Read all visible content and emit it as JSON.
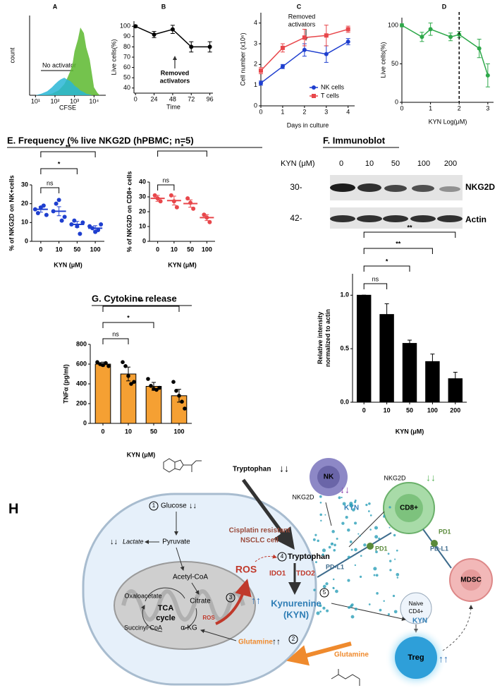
{
  "headings": {
    "E": "E. Frequency (% live NKG2D (hPBMC; n=5)",
    "G": "G. Cytokine release"
  },
  "immunoblot": {
    "title": "F. Immunoblot",
    "axis_label": "KYN (μM)",
    "lanes": [
      "0",
      "10",
      "50",
      "100",
      "200"
    ],
    "rows": [
      {
        "size": "30-",
        "name": "NKG2D"
      },
      {
        "size": "42-",
        "name": "Actin"
      }
    ]
  },
  "chart_data": [
    {
      "label": "A",
      "type": "area",
      "xscale": "log",
      "x": [
        10,
        20,
        40,
        70,
        100,
        150,
        200,
        300,
        400,
        600,
        800,
        1000,
        1500,
        2000,
        3000,
        4000,
        6000,
        8000,
        10000,
        15000,
        20000
      ],
      "series": [
        {
          "color": "#5cb82e",
          "values": [
            0,
            0,
            1,
            2,
            4,
            6,
            9,
            14,
            20,
            30,
            40,
            55,
            70,
            85,
            78,
            60,
            45,
            25,
            10,
            3,
            0
          ]
        },
        {
          "color": "#29b6d6",
          "values": [
            0,
            2,
            5,
            10,
            14,
            18,
            20,
            22,
            20,
            18,
            15,
            12,
            9,
            6,
            4,
            2,
            1,
            0,
            0,
            0,
            0
          ]
        }
      ],
      "xlim": [
        5,
        40000
      ],
      "xticks": [
        {
          "value": 10,
          "label": "10¹"
        },
        {
          "value": 100,
          "label": "10²"
        },
        {
          "value": 1000,
          "label": "10³"
        },
        {
          "value": 10000,
          "label": "10⁴"
        }
      ],
      "ylim": [
        0,
        100
      ],
      "ylabel": "count",
      "xlabel": "CFSE",
      "annotation": "No activator"
    },
    {
      "label": "B",
      "type": "line",
      "x": [
        0,
        24,
        48,
        72,
        96
      ],
      "series": [
        {
          "color": "#000000",
          "marker": "circle",
          "values": [
            100,
            92,
            97,
            80,
            80
          ],
          "errors": [
            1,
            3,
            4,
            5,
            5
          ]
        }
      ],
      "xlim": [
        -2,
        100
      ],
      "xticks": [
        0,
        24,
        48,
        72,
        96
      ],
      "ylim": [
        35,
        105
      ],
      "yticks": [
        40,
        50,
        60,
        70,
        80,
        90,
        100
      ],
      "ylabel": "Live cells(%)",
      "xlabel": "Time",
      "annotation": [
        "Removed",
        "activators"
      ]
    },
    {
      "label": "C",
      "type": "line",
      "x": [
        0,
        1,
        2,
        3,
        4
      ],
      "series": [
        {
          "name": "NK cells",
          "color": "#1f3fcf",
          "marker": "circle",
          "values": [
            1.1,
            1.9,
            2.7,
            2.5,
            3.1
          ],
          "errors": [
            0.1,
            0.1,
            0.3,
            0.4,
            0.15
          ]
        },
        {
          "name": "T cells",
          "color": "#e8474b",
          "marker": "square",
          "values": [
            1.7,
            2.8,
            3.3,
            3.4,
            3.7
          ],
          "errors": [
            0.15,
            0.2,
            0.4,
            0.5,
            0.15
          ]
        }
      ],
      "xlim": [
        0,
        4.3
      ],
      "xticks": [
        0,
        1,
        2,
        3,
        4
      ],
      "ylim": [
        0,
        4.5
      ],
      "yticks": [
        0,
        1,
        2,
        3,
        4
      ],
      "legend": "lower right",
      "ylabel": "Cell number (x10⁶)",
      "xlabel": "Days in culture",
      "annotation": [
        "Removed",
        "activators"
      ]
    },
    {
      "label": "D",
      "type": "line",
      "x": [
        0,
        0.7,
        1,
        1.7,
        2,
        2.7,
        3
      ],
      "series": [
        {
          "color": "#2ea84a",
          "marker": "circle",
          "values": [
            100,
            85,
            95,
            85,
            88,
            70,
            35
          ],
          "errors": [
            2,
            6,
            8,
            5,
            4,
            12,
            15
          ]
        }
      ],
      "xlim": [
        0,
        3.2
      ],
      "xticks": [
        0,
        1,
        2,
        3
      ],
      "ylim": [
        0,
        110
      ],
      "yticks": [
        0,
        50,
        100
      ],
      "vline": 2,
      "ylabel": "Live cells(%)",
      "xlabel": "KYN Log(μM)"
    },
    {
      "type": "dot",
      "categories": [
        "0",
        "10",
        "50",
        "100"
      ],
      "color": "#1f3fcf",
      "points": [
        [
          17,
          15,
          18,
          19,
          14
        ],
        [
          16,
          20,
          22,
          11,
          13
        ],
        [
          9,
          11,
          8,
          4,
          10
        ],
        [
          8,
          7,
          5,
          6,
          9
        ]
      ],
      "means": [
        17,
        16,
        9,
        7
      ],
      "errors": [
        1.5,
        2.4,
        1.6,
        1.3
      ],
      "ylim": [
        0,
        30
      ],
      "yticks": [
        0,
        10,
        20,
        30
      ],
      "ylabel": "% of NKG2D on NK+cells",
      "xlabel": "KYN (μM)",
      "comparisons": [
        {
          "from": "0",
          "to": "10",
          "label": "ns"
        },
        {
          "from": "0",
          "to": "50",
          "label": "*"
        },
        {
          "from": "0",
          "to": "100",
          "label": "**"
        }
      ]
    },
    {
      "type": "dot",
      "categories": [
        "0",
        "10",
        "50",
        "100"
      ],
      "color": "#e8474b",
      "points": [
        [
          31,
          29,
          27
        ],
        [
          31,
          27,
          23
        ],
        [
          29,
          26,
          22
        ],
        [
          18,
          16,
          13
        ]
      ],
      "means": [
        29,
        27.5,
        25.5,
        16
      ],
      "errors": [
        2,
        3,
        2.5,
        2
      ],
      "ylim": [
        0,
        40
      ],
      "yticks": [
        0,
        10,
        20,
        30,
        40
      ],
      "ylabel": "% of NKG2D on CD8+ cells",
      "xlabel": "KYN (μM)",
      "comparisons": [
        {
          "from": "0",
          "to": "10",
          "label": "ns"
        },
        {
          "from": "0",
          "to": "100",
          "label": "*"
        }
      ]
    },
    {
      "type": "bar",
      "categories": [
        "0",
        "10",
        "50",
        "100",
        "200"
      ],
      "color": "#000000",
      "values": [
        1,
        0.82,
        0.55,
        0.38,
        0.22
      ],
      "errors": [
        0,
        0.1,
        0.03,
        0.07,
        0.06
      ],
      "ylim": [
        0,
        1.2
      ],
      "yticks": [
        {
          "value": 0,
          "label": "0.0"
        },
        0.5,
        {
          "value": 1,
          "label": "1.0"
        }
      ],
      "ylabel": [
        "Relative intensity",
        "normalized to actin"
      ],
      "xlabel": "KYN (μM)",
      "comparisons": [
        {
          "from": "0",
          "to": "10",
          "label": "ns"
        },
        {
          "from": "0",
          "to": "50",
          "label": "*"
        },
        {
          "from": "0",
          "to": "100",
          "label": "**"
        },
        {
          "from": "0",
          "to": "200",
          "label": "**"
        }
      ]
    },
    {
      "type": "bar",
      "categories": [
        "0",
        "10",
        "50",
        "100"
      ],
      "color": "#f5a033",
      "values": [
        600,
        500,
        375,
        280
      ],
      "errors": [
        20,
        70,
        40,
        65
      ],
      "points": [
        [
          620,
          600,
          590,
          610,
          580
        ],
        [
          620,
          580,
          480,
          400,
          420
        ],
        [
          450,
          380,
          350,
          340,
          360
        ],
        [
          420,
          330,
          280,
          220,
          150
        ]
      ],
      "ylim": [
        0,
        800
      ],
      "yticks": [
        0,
        200,
        400,
        600,
        800
      ],
      "ylabel": "TNFα (pg/ml)",
      "xlabel": "KYN (μM)",
      "comparisons": [
        {
          "from": "0",
          "to": "10",
          "label": "ns"
        },
        {
          "from": "0",
          "to": "50",
          "label": "*"
        },
        {
          "from": "0",
          "to": "100",
          "label": "**"
        }
      ]
    }
  ],
  "diagram": {
    "label": "H",
    "tryptophan": "Tryptophan",
    "tryptophan_change": "↓↓",
    "nk": "NK",
    "nk_receptor": "NKG2D",
    "nk_change": "↓↓",
    "kyn_nk": "KYN",
    "cd8": "CD8+",
    "cd8_receptor": "NKG2D",
    "cd8_change": "↓↓",
    "pd1_cd8": "PD1",
    "pdl1_mdsc": "PD-L1",
    "mdsc": "MDSC",
    "pd1_left": "PD1",
    "pdl1_cell": "PD-L1",
    "naive": [
      "Naive",
      "CD4+"
    ],
    "kyn_treg": "KYN",
    "treg": "Treg",
    "treg_change": "↑↑",
    "steps": [
      "1",
      "2",
      "3",
      "4",
      "5"
    ],
    "glucose": "Glucose",
    "glucose_change": "↓↓",
    "lactate": "Lactate",
    "lactate_change": "↓↓",
    "pyruvate": "Pyruvate",
    "acetyl": "Acetyl-CoA",
    "oxaloacetate": "Oxaloacetate",
    "citrate": "Citrate",
    "tca": [
      "TCA",
      "cycle"
    ],
    "succinyl": "Succinyl-CoA",
    "akg": "α-KG",
    "ros_mito": "ROS",
    "ros": "ROS",
    "cell": [
      "Cisplatin resistant",
      "NSCLC cell"
    ],
    "tryptophan_in": "Tryptophan",
    "ido1": "IDO1",
    "tdo2": "TDO2",
    "kyn_change": "↑↑",
    "kynurenine": [
      "Kynurenine",
      "(KYN)"
    ],
    "glutamine_in": "Glutamine",
    "glutamine_change": "↑↑",
    "glutamine_out": "Glutamine"
  }
}
